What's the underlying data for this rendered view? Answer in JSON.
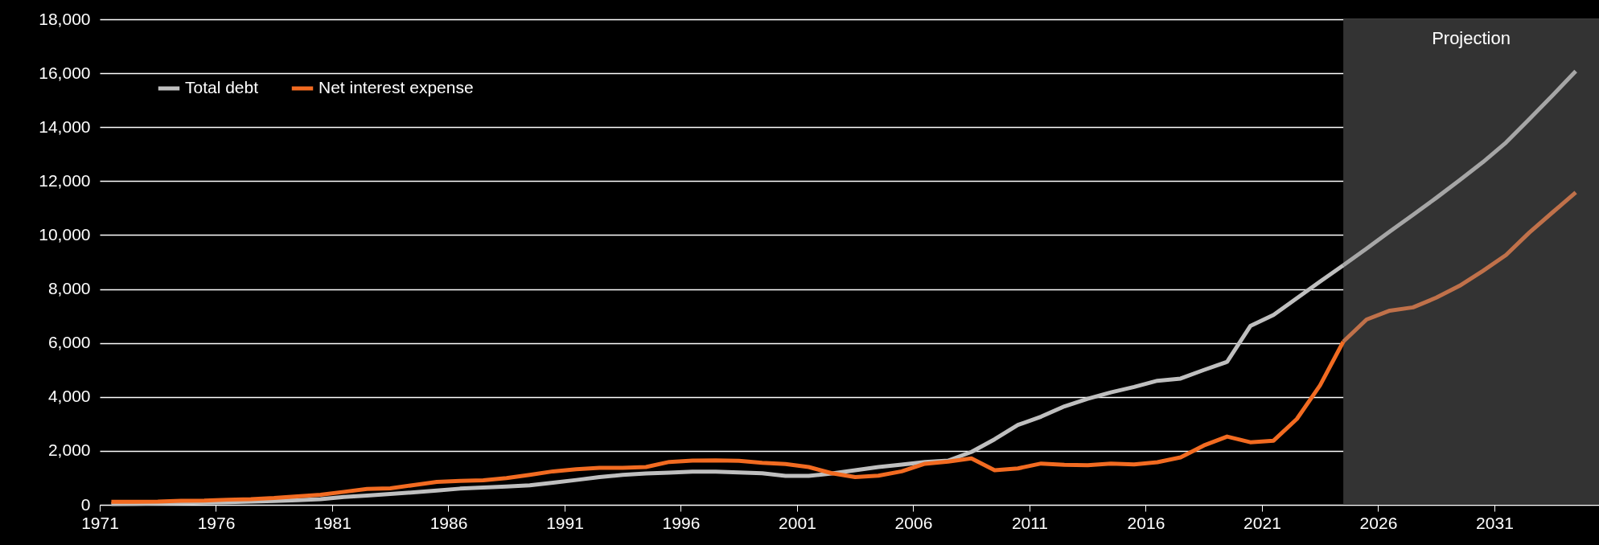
{
  "chart_data": {
    "type": "line",
    "legend": "top left",
    "grid": "y",
    "line_style": "solid",
    "marker": "none",
    "xlim": [
      1970.5,
      2035
    ],
    "ylim": [
      0,
      18000
    ],
    "xticks": [
      {
        "value": 1970.5,
        "label": "1971"
      },
      {
        "value": 1975.5,
        "label": "1976"
      },
      {
        "value": 1980.5,
        "label": "1981"
      },
      {
        "value": 1985.5,
        "label": "1986"
      },
      {
        "value": 1990.5,
        "label": "1991"
      },
      {
        "value": 1995.5,
        "label": "1996"
      },
      {
        "value": 2000.5,
        "label": "2001"
      },
      {
        "value": 2005.5,
        "label": "2006"
      },
      {
        "value": 2010.5,
        "label": "2011"
      },
      {
        "value": 2015.5,
        "label": "2016"
      },
      {
        "value": 2020.5,
        "label": "2021"
      },
      {
        "value": 2025.5,
        "label": "2026"
      },
      {
        "value": 2030.5,
        "label": "2031"
      }
    ],
    "yticks": [
      0,
      {
        "value": 2000,
        "label": "2,000"
      },
      {
        "value": 4000,
        "label": "4,000"
      },
      {
        "value": 6000,
        "label": "6,000"
      },
      {
        "value": 8000,
        "label": "8,000"
      },
      {
        "value": 10000,
        "label": "10,000"
      },
      {
        "value": 12000,
        "label": "12,000"
      },
      {
        "value": 14000,
        "label": "14,000"
      },
      {
        "value": 16000,
        "label": "16,000"
      },
      {
        "value": 18000,
        "label": "18,000"
      }
    ],
    "bands": [
      {
        "axis": "x",
        "from": 2024,
        "to": 2035,
        "label": "Projection",
        "color": "#333333"
      }
    ],
    "series": [
      {
        "name": "Total debt",
        "color": "#bfbfbf",
        "x": [
          1971,
          1972,
          1973,
          1974,
          1975,
          1976,
          1977,
          1978,
          1979,
          1980,
          1981,
          1982,
          1983,
          1984,
          1985,
          1986,
          1987,
          1988,
          1989,
          1990,
          1991,
          1992,
          1993,
          1994,
          1995,
          1996,
          1997,
          1998,
          1999,
          2000,
          2001,
          2002,
          2003,
          2004,
          2005,
          2006,
          2007,
          2008,
          2009,
          2010,
          2011,
          2012,
          2013,
          2014,
          2015,
          2016,
          2017,
          2018,
          2019,
          2020,
          2021,
          2022,
          2023,
          2024
        ],
        "values": [
          30,
          40,
          50,
          70,
          80,
          100,
          120,
          140,
          170,
          210,
          290,
          340,
          400,
          460,
          530,
          600,
          640,
          680,
          720,
          820,
          920,
          1030,
          1110,
          1160,
          1190,
          1230,
          1230,
          1200,
          1170,
          1070,
          1070,
          1160,
          1280,
          1400,
          1490,
          1590,
          1640,
          1960,
          2430,
          2960,
          3270,
          3650,
          3930,
          4170,
          4370,
          4600,
          4680,
          5000,
          5300,
          6630,
          7040,
          7660,
          8280,
          8880
        ]
      },
      {
        "name": "Net interest expense",
        "color": "#f26b21",
        "x": [
          1971,
          1972,
          1973,
          1974,
          1975,
          1976,
          1977,
          1978,
          1979,
          1980,
          1981,
          1982,
          1983,
          1984,
          1985,
          1986,
          1987,
          1988,
          1989,
          1990,
          1991,
          1992,
          1993,
          1994,
          1995,
          1996,
          1997,
          1998,
          1999,
          2000,
          2001,
          2002,
          2003,
          2004,
          2005,
          2006,
          2007,
          2008,
          2009,
          2010,
          2011,
          2012,
          2013,
          2014,
          2015,
          2016,
          2017,
          2018,
          2019,
          2020,
          2021,
          2022,
          2023,
          2024
        ],
        "values": [
          110,
          110,
          120,
          150,
          160,
          190,
          210,
          250,
          310,
          370,
          480,
          590,
          610,
          730,
          850,
          890,
          910,
          990,
          1110,
          1240,
          1320,
          1370,
          1370,
          1400,
          1590,
          1640,
          1650,
          1630,
          1560,
          1510,
          1400,
          1170,
          1030,
          1080,
          1240,
          1520,
          1600,
          1720,
          1280,
          1350,
          1530,
          1480,
          1470,
          1530,
          1500,
          1580,
          1760,
          2200,
          2530,
          2320,
          2380,
          3180,
          4430,
          6050
        ]
      },
      {
        "color": "#a6a6a6",
        "x": [
          2024,
          2025,
          2026,
          2027,
          2028,
          2029,
          2030,
          2031,
          2032,
          2033,
          2034
        ],
        "values": [
          8880,
          9500,
          10130,
          10750,
          11380,
          12030,
          12700,
          13430,
          14300,
          15180,
          16080
        ]
      },
      {
        "color": "#c0714a",
        "x": [
          2024,
          2025,
          2026,
          2027,
          2028,
          2029,
          2030,
          2031,
          2032,
          2033,
          2034
        ],
        "values": [
          6050,
          6870,
          7200,
          7320,
          7680,
          8120,
          8670,
          9260,
          10090,
          10840,
          11580
        ]
      }
    ]
  }
}
